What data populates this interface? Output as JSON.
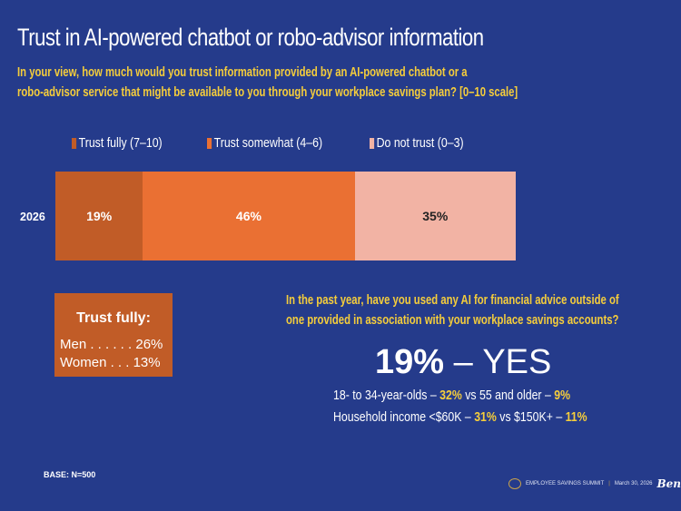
{
  "title": "Trust in AI-powered chatbot or robo-advisor information",
  "question": {
    "line1": "In your view, how much would you trust information provided by an AI-powered chatbot or a",
    "line2": "robo-advisor service that might be available to you through your workplace savings plan? [0–10 scale]"
  },
  "chart_data": {
    "type": "bar",
    "orientation": "horizontal-stacked-100",
    "categories": [
      "2026"
    ],
    "series": [
      {
        "name": "Trust fully (7–10)",
        "values": [
          19
        ],
        "label": "19%",
        "color": "#c15c27"
      },
      {
        "name": "Trust somewhat (4–6)",
        "values": [
          46
        ],
        "label": "46%",
        "color": "#ea7033"
      },
      {
        "name": "Do not trust (0–3)",
        "values": [
          35
        ],
        "label": "35%",
        "color": "#f2b3a4"
      }
    ],
    "xlim": [
      0,
      100
    ],
    "legend": "top"
  },
  "trust_fully_box": {
    "heading": "Trust fully:",
    "rows": [
      {
        "label": "Men . . . . . .",
        "value": "26%"
      },
      {
        "label": "Women . . .",
        "value": "13%"
      }
    ]
  },
  "ai_usage": {
    "question1": "In the past year, have you used any AI for financial advice outside of",
    "question2": "one provided in association with your workplace savings accounts?",
    "headline_value": "19%",
    "headline_dash": "–",
    "headline_label": "YES",
    "stat1": {
      "a": "18- to 34-year-olds –",
      "v1": "32%",
      "b": "vs 55 and older –",
      "v2": "9%"
    },
    "stat2": {
      "a": "Household income <$60K –",
      "v1": "31%",
      "b": "vs $150K+ –",
      "v2": "11%"
    }
  },
  "base": "BASE: N=500",
  "footer": {
    "event": "EMPLOYEE SAVINGS SUMMIT",
    "sep": "|",
    "date": "March 30, 2026",
    "logo": "Benefits"
  }
}
